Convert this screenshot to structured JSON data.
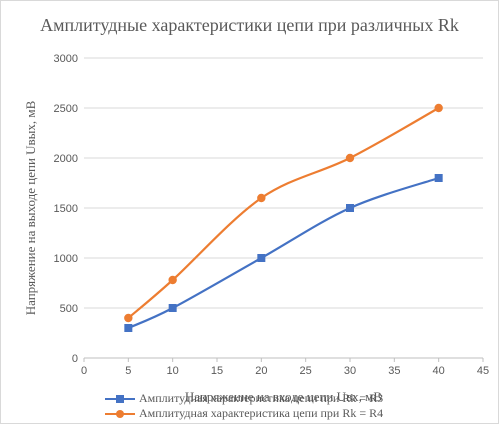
{
  "chart_data": {
    "type": "line",
    "title": "Амплитудные характеристики цепи при различных Rk",
    "xlabel": "Напряжение на входе цепи Uвх, мВ",
    "ylabel": "Напряжение на выходе цепи Uвых, мВ",
    "xlim": [
      0,
      45
    ],
    "ylim": [
      0,
      3000
    ],
    "xticks": [
      0,
      5,
      10,
      15,
      20,
      25,
      30,
      35,
      40,
      45
    ],
    "yticks": [
      0,
      500,
      1000,
      1500,
      2000,
      2500,
      3000
    ],
    "grid": "horizontal",
    "legend": "bottom",
    "series": [
      {
        "name": "Амплитудная характеристика цепи при Rk = R3",
        "color": "#4472c4",
        "marker": "square",
        "x": [
          5,
          10,
          20,
          30,
          40
        ],
        "values": [
          300,
          500,
          1000,
          1500,
          1800
        ]
      },
      {
        "name": "Амплитудная характеристика цепи при Rk = R4",
        "color": "#ed7d31",
        "marker": "circle",
        "x": [
          5,
          10,
          20,
          30,
          40
        ],
        "values": [
          400,
          780,
          1600,
          2000,
          2500
        ]
      }
    ]
  }
}
